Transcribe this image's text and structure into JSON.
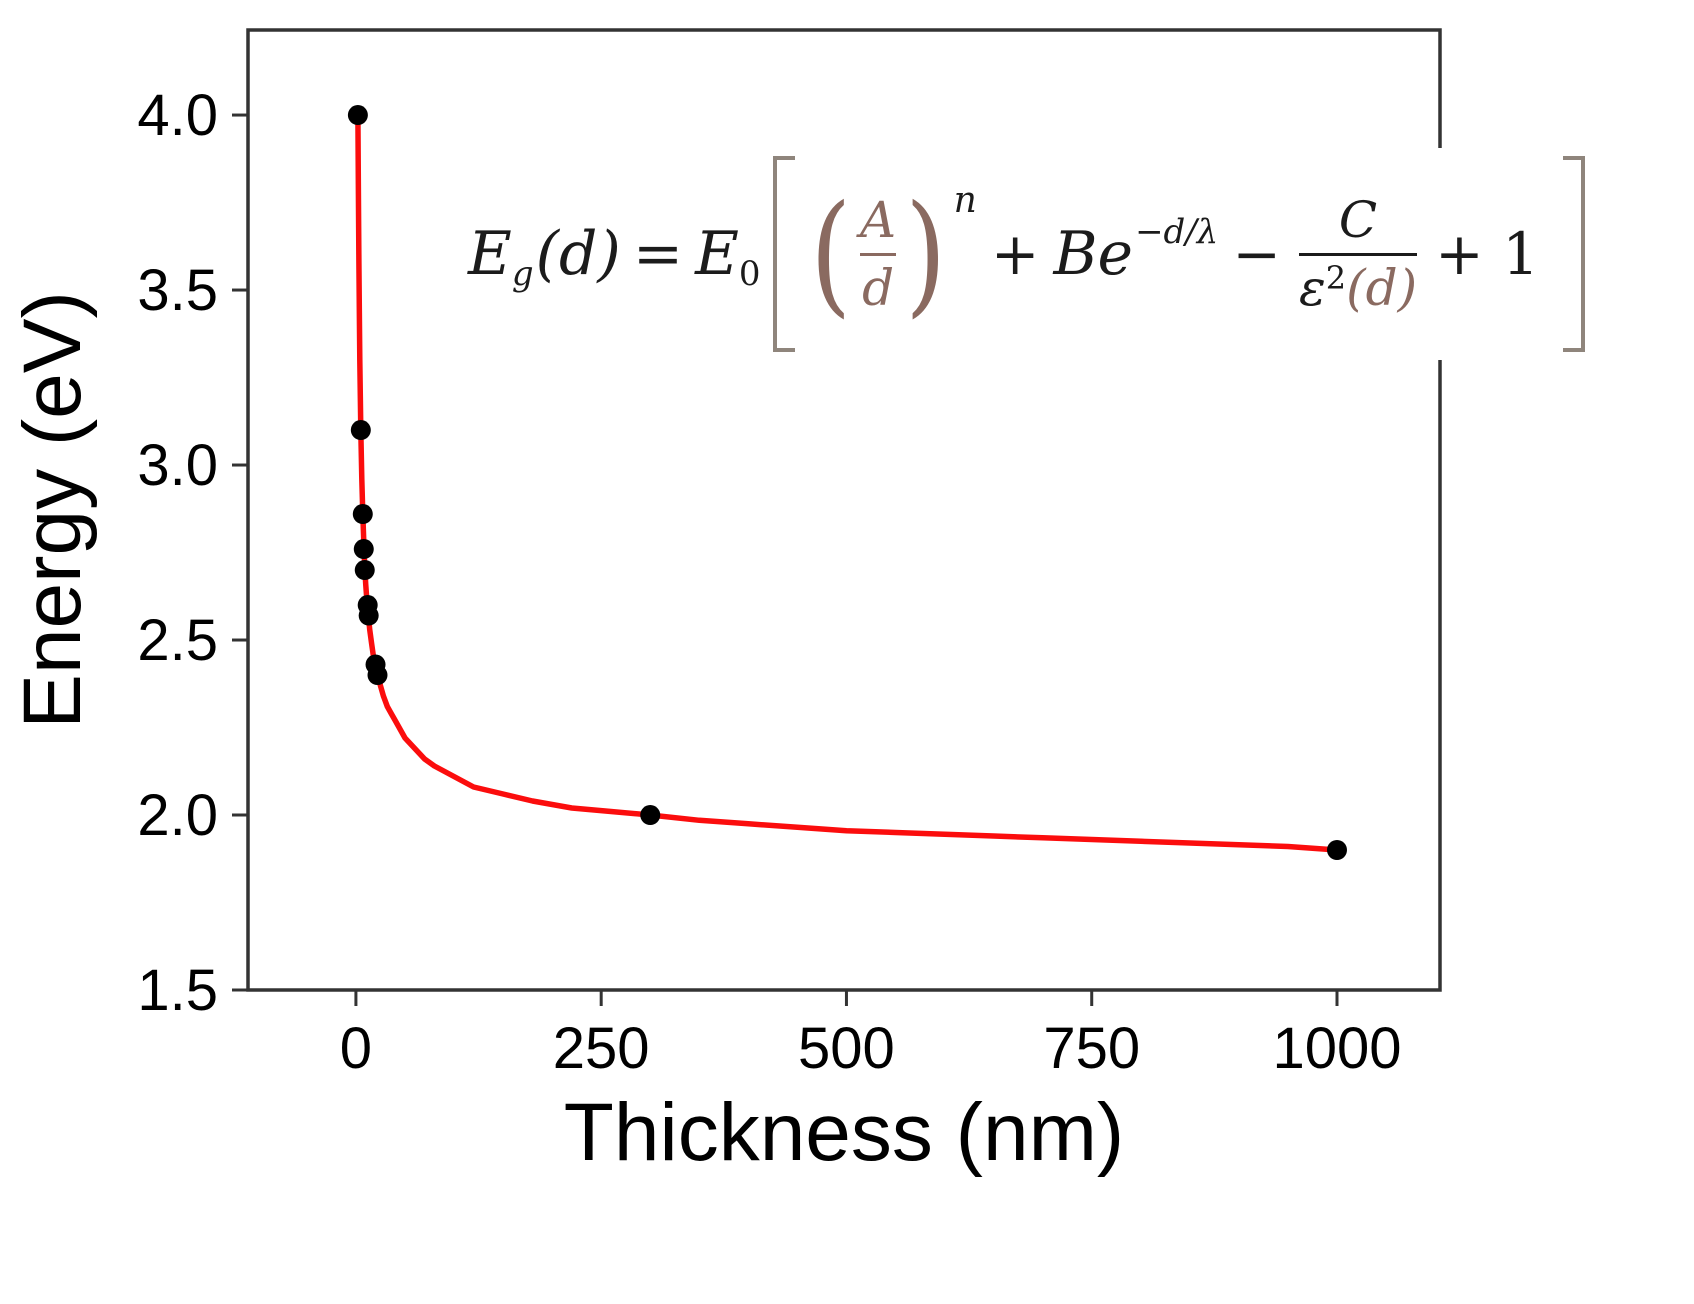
{
  "chart_data": {
    "type": "scatter",
    "title": "",
    "xlabel": "Thickness (nm)",
    "ylabel": "Energy (eV)",
    "xlim": [
      -110,
      1105
    ],
    "ylim": [
      1.5,
      4.243
    ],
    "grid": false,
    "legend": "none",
    "frame_color": "#333333",
    "fit_color": "#fb0d0d",
    "point_color": "#000000",
    "xticks": [
      {
        "v": 0,
        "label": "0"
      },
      {
        "v": 250,
        "label": "250"
      },
      {
        "v": 500,
        "label": "500"
      },
      {
        "v": 750,
        "label": "750"
      },
      {
        "v": 1000,
        "label": "1000"
      }
    ],
    "yticks": [
      {
        "v": 1.5,
        "label": "1.5"
      },
      {
        "v": 2.0,
        "label": "2.0"
      },
      {
        "v": 2.5,
        "label": "2.5"
      },
      {
        "v": 3.0,
        "label": "3.0"
      },
      {
        "v": 3.5,
        "label": "3.5"
      },
      {
        "v": 4.0,
        "label": "4.0"
      }
    ],
    "points": [
      [
        2,
        4.0
      ],
      [
        5,
        3.1
      ],
      [
        7,
        2.86
      ],
      [
        8,
        2.76
      ],
      [
        9,
        2.7
      ],
      [
        12,
        2.6
      ],
      [
        13,
        2.57
      ],
      [
        20,
        2.43
      ],
      [
        22,
        2.4
      ],
      [
        300,
        2.0
      ],
      [
        1000,
        1.9
      ]
    ],
    "fit_curve": [
      [
        2,
        4.0
      ],
      [
        2.5,
        3.78
      ],
      [
        3,
        3.58
      ],
      [
        3.5,
        3.42
      ],
      [
        4,
        3.3
      ],
      [
        4.5,
        3.2
      ],
      [
        5,
        3.1
      ],
      [
        6,
        2.96
      ],
      [
        7,
        2.86
      ],
      [
        8,
        2.78
      ],
      [
        9,
        2.71
      ],
      [
        10,
        2.66
      ],
      [
        11,
        2.62
      ],
      [
        12,
        2.59
      ],
      [
        13,
        2.56
      ],
      [
        14,
        2.53
      ],
      [
        16,
        2.49
      ],
      [
        18,
        2.45
      ],
      [
        20,
        2.42
      ],
      [
        22,
        2.4
      ],
      [
        25,
        2.37
      ],
      [
        28,
        2.34
      ],
      [
        32,
        2.31
      ],
      [
        36,
        2.29
      ],
      [
        40,
        2.27
      ],
      [
        50,
        2.22
      ],
      [
        60,
        2.19
      ],
      [
        70,
        2.16
      ],
      [
        80,
        2.14
      ],
      [
        100,
        2.11
      ],
      [
        120,
        2.08
      ],
      [
        150,
        2.06
      ],
      [
        180,
        2.04
      ],
      [
        220,
        2.02
      ],
      [
        260,
        2.01
      ],
      [
        300,
        2.0
      ],
      [
        350,
        1.985
      ],
      [
        400,
        1.975
      ],
      [
        450,
        1.965
      ],
      [
        500,
        1.955
      ],
      [
        550,
        1.95
      ],
      [
        600,
        1.945
      ],
      [
        650,
        1.94
      ],
      [
        700,
        1.935
      ],
      [
        750,
        1.93
      ],
      [
        800,
        1.925
      ],
      [
        850,
        1.92
      ],
      [
        900,
        1.915
      ],
      [
        950,
        1.91
      ],
      [
        1000,
        1.9
      ]
    ]
  },
  "equation": {
    "E": "E",
    "sub_g": "g",
    "of_d": "(d)",
    "eq": "=",
    "E2": "E",
    "sub_0": "0",
    "lparen": "(",
    "rparen": ")",
    "frac1_num": "A",
    "frac1_den": "d",
    "sup_n": "n",
    "plus": "+",
    "Be": "Be",
    "sup_exp": "−d/λ",
    "minus": "−",
    "frac2_num": "C",
    "eps": "ε",
    "sup_2": "2",
    "of_d2": "(d)",
    "plus_one": "+ 1"
  }
}
